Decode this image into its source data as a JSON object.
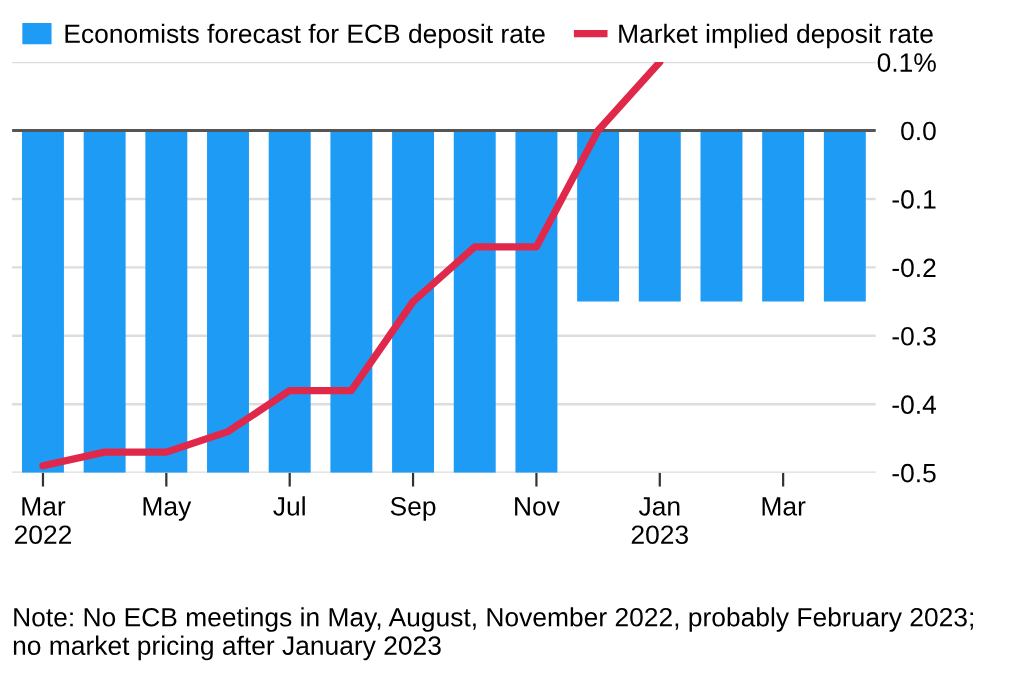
{
  "chart_data": {
    "type": "bar",
    "categories": [
      "Mar\n2022",
      null,
      "May",
      null,
      "Jul",
      null,
      "Sep",
      null,
      "Nov",
      null,
      "Jan\n2023",
      null,
      "Mar",
      null
    ],
    "series": [
      {
        "name": "Economists forecast for ECB deposit rate",
        "color": "#1e9cf5",
        "values": [
          -0.5,
          -0.5,
          -0.5,
          -0.5,
          -0.5,
          -0.5,
          -0.5,
          -0.5,
          -0.5,
          -0.25,
          -0.25,
          -0.25,
          -0.25,
          -0.25
        ]
      },
      {
        "name": "Market implied deposit rate",
        "type": "line",
        "color": "#e0284a",
        "values": [
          -0.49,
          -0.47,
          -0.47,
          -0.44,
          -0.38,
          -0.38,
          -0.25,
          -0.17,
          -0.17,
          0.0,
          0.1,
          null,
          null,
          null
        ]
      }
    ],
    "ylim": [
      -0.5,
      0.1
    ],
    "yticks": [
      {
        "value": 0.1,
        "label": "0.1%"
      },
      {
        "value": 0.0,
        "label": "0.0"
      },
      {
        "value": -0.1,
        "label": "-0.1"
      },
      {
        "value": -0.2,
        "label": "-0.2"
      },
      {
        "value": -0.3,
        "label": "-0.3"
      },
      {
        "value": -0.4,
        "label": "-0.4"
      },
      {
        "value": -0.5,
        "label": "-0.5"
      }
    ],
    "ref_lines": [
      {
        "axis": "y",
        "value": 0.0,
        "color": "#555555"
      }
    ],
    "grid": "y",
    "legend": "top",
    "marker": "none",
    "line_style": "solid",
    "annotations": [
      "Note: No ECB meetings in May, August, November 2022, probably February 2023; no market pricing after January 2023"
    ]
  }
}
